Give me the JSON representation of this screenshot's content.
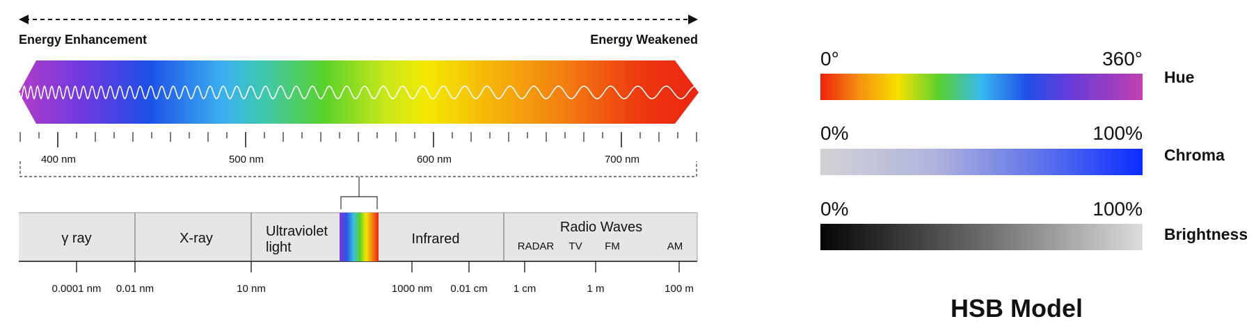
{
  "spectrum": {
    "energy_left": "Energy Enhancement",
    "energy_right": "Energy Weakened",
    "wavelength_labels": [
      "400 nm",
      "500 nm",
      "600 nm",
      "700 nm"
    ],
    "regions": {
      "gamma": "γ ray",
      "xray": "X-ray",
      "ultraviolet_line1": "Ultraviolet",
      "ultraviolet_line2": "light",
      "infrared": "Infrared",
      "radio": "Radio Waves",
      "radio_sub": [
        "RADAR",
        "TV",
        "FM",
        "AM"
      ]
    },
    "scale_labels": [
      "0.0001 nm",
      "0.01 nm",
      "10 nm",
      "1000 nm",
      "0.01 cm",
      "1 cm",
      "1 m",
      "100 m"
    ]
  },
  "hsb": {
    "title": "HSB Model",
    "bars": [
      {
        "name": "Hue",
        "min": "0°",
        "max": "360°"
      },
      {
        "name": "Chroma",
        "min": "0%",
        "max": "100%"
      },
      {
        "name": "Brightness",
        "min": "0%",
        "max": "100%"
      }
    ]
  },
  "colors": {
    "violet": "#a040c0",
    "blue": "#1f4fe8",
    "cyan": "#3ab0f0",
    "green": "#5ad22a",
    "yellow": "#f4e800",
    "orange": "#f39010",
    "red": "#ee2a10",
    "region_fill": "#e6e6e6",
    "chroma_start": "#d0d0d6",
    "chroma_end": "#0a2cff"
  }
}
